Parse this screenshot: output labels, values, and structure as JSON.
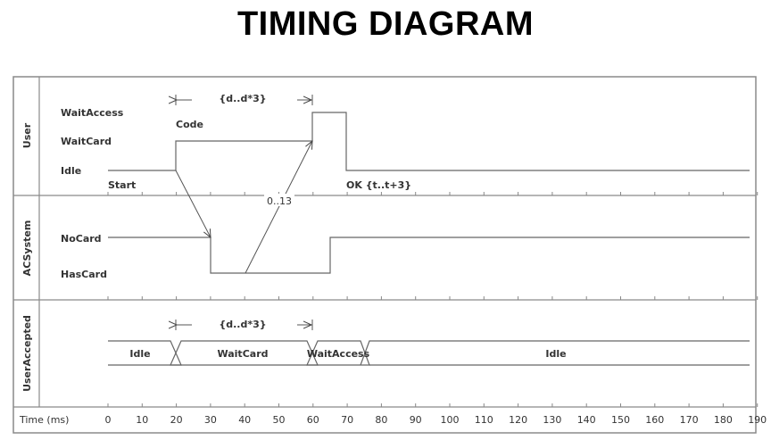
{
  "title": "TIMING DIAGRAM",
  "axis": {
    "label": "Time (ms)",
    "ticks": [
      "0",
      "10",
      "20",
      "30",
      "40",
      "50",
      "60",
      "70",
      "80",
      "90",
      "100",
      "110",
      "120",
      "130",
      "140",
      "150",
      "160",
      "170",
      "180",
      "190"
    ]
  },
  "lanes": {
    "user": {
      "name": "User",
      "states": [
        "WaitAccess",
        "WaitCard",
        "Idle"
      ],
      "events": {
        "code": "Code",
        "start": "Start",
        "ok": "OK {t..t+3}"
      },
      "duration": "{d..d*3}"
    },
    "acsystem": {
      "name": "ACSystem",
      "states": [
        "NoCard",
        "HasCard"
      ],
      "message": "0..13"
    },
    "useraccepted": {
      "name": "UserAccepted",
      "duration": "{d..d*3}",
      "values": [
        "Idle",
        "WaitCard",
        "WaitAccess",
        "Idle"
      ]
    }
  }
}
